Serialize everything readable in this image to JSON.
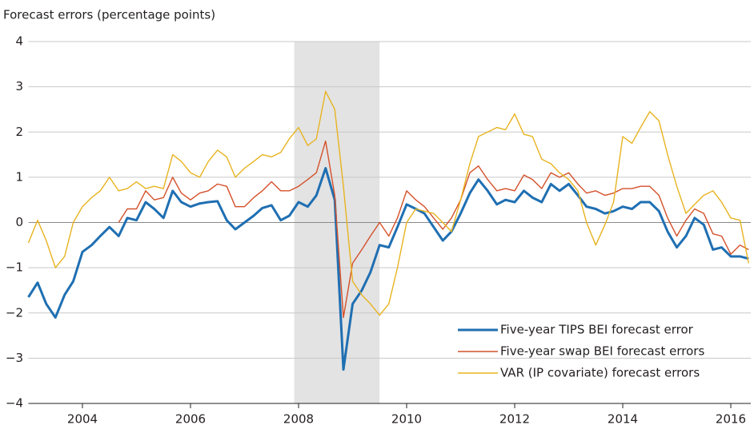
{
  "chart_data": {
    "type": "line",
    "y_axis_label": "Forecast errors (percentage points)",
    "x": [
      2003.0,
      2003.17,
      2003.33,
      2003.5,
      2003.67,
      2003.83,
      2004.0,
      2004.17,
      2004.33,
      2004.5,
      2004.67,
      2004.83,
      2005.0,
      2005.17,
      2005.33,
      2005.5,
      2005.67,
      2005.83,
      2006.0,
      2006.17,
      2006.33,
      2006.5,
      2006.67,
      2006.83,
      2007.0,
      2007.17,
      2007.33,
      2007.5,
      2007.67,
      2007.83,
      2008.0,
      2008.17,
      2008.33,
      2008.5,
      2008.67,
      2008.83,
      2009.0,
      2009.17,
      2009.33,
      2009.5,
      2009.67,
      2009.83,
      2010.0,
      2010.17,
      2010.33,
      2010.5,
      2010.67,
      2010.83,
      2011.0,
      2011.17,
      2011.33,
      2011.5,
      2011.67,
      2011.83,
      2012.0,
      2012.17,
      2012.33,
      2012.5,
      2012.67,
      2012.83,
      2013.0,
      2013.17,
      2013.33,
      2013.5,
      2013.67,
      2013.83,
      2014.0,
      2014.17,
      2014.33,
      2014.5,
      2014.67,
      2014.83,
      2015.0,
      2015.17,
      2015.33,
      2015.5,
      2015.67,
      2015.83,
      2016.0,
      2016.17,
      2016.33
    ],
    "series": [
      {
        "name": "Five-year TIPS BEI forecast error",
        "color": "#1f6fb2",
        "width": 3,
        "values": [
          -1.65,
          -1.33,
          -1.8,
          -2.1,
          -1.6,
          -1.3,
          -0.65,
          -0.5,
          -0.3,
          -0.1,
          -0.3,
          0.1,
          0.05,
          0.45,
          0.3,
          0.1,
          0.7,
          0.45,
          0.35,
          0.42,
          0.45,
          0.47,
          0.05,
          -0.15,
          0.0,
          0.15,
          0.32,
          0.38,
          0.05,
          0.15,
          0.45,
          0.35,
          0.6,
          1.2,
          0.5,
          -3.25,
          -1.8,
          -1.5,
          -1.1,
          -0.5,
          -0.55,
          -0.1,
          0.4,
          0.3,
          0.2,
          -0.1,
          -0.4,
          -0.2,
          0.2,
          0.65,
          0.95,
          0.7,
          0.4,
          0.5,
          0.45,
          0.7,
          0.55,
          0.45,
          0.85,
          0.7,
          0.85,
          0.6,
          0.35,
          0.3,
          0.2,
          0.25,
          0.35,
          0.3,
          0.45,
          0.45,
          0.25,
          -0.2,
          -0.55,
          -0.3,
          0.1,
          -0.05,
          -0.6,
          -0.55,
          -0.75,
          -0.75,
          -0.8
        ]
      },
      {
        "name": "Five-year swap BEI forecast errors",
        "color": "#d4502a",
        "width": 1.4,
        "values": [
          null,
          null,
          null,
          null,
          null,
          null,
          null,
          null,
          null,
          null,
          0.0,
          0.3,
          0.3,
          0.7,
          0.5,
          0.55,
          1.0,
          0.65,
          0.5,
          0.65,
          0.7,
          0.85,
          0.8,
          0.35,
          0.35,
          0.55,
          0.7,
          0.9,
          0.7,
          0.7,
          0.8,
          0.95,
          1.1,
          1.8,
          0.6,
          -2.1,
          -0.9,
          -0.6,
          -0.3,
          0.0,
          -0.3,
          0.1,
          0.7,
          0.5,
          0.35,
          0.1,
          -0.15,
          0.1,
          0.5,
          1.1,
          1.25,
          0.95,
          0.7,
          0.75,
          0.7,
          1.05,
          0.95,
          0.75,
          1.1,
          1.0,
          1.1,
          0.85,
          0.65,
          0.7,
          0.6,
          0.65,
          0.75,
          0.75,
          0.8,
          0.8,
          0.6,
          0.1,
          -0.3,
          0.05,
          0.3,
          0.2,
          -0.25,
          -0.3,
          -0.7,
          -0.5,
          -0.6
        ]
      },
      {
        "name": "VAR (IP covariate) forecast errors",
        "color": "#e8b320",
        "width": 1.4,
        "values": [
          -0.45,
          0.05,
          -0.4,
          -1.0,
          -0.75,
          0.0,
          0.35,
          0.55,
          0.7,
          1.0,
          0.7,
          0.75,
          0.9,
          0.75,
          0.8,
          0.75,
          1.5,
          1.35,
          1.1,
          1.0,
          1.35,
          1.6,
          1.45,
          1.0,
          1.2,
          1.35,
          1.5,
          1.45,
          1.55,
          1.85,
          2.1,
          1.7,
          1.85,
          2.9,
          2.5,
          0.8,
          -1.3,
          -1.6,
          -1.8,
          -2.05,
          -1.8,
          -1.0,
          0.0,
          0.3,
          0.25,
          0.2,
          0.0,
          -0.2,
          0.5,
          1.3,
          1.9,
          2.0,
          2.1,
          2.05,
          2.4,
          1.95,
          1.9,
          1.4,
          1.3,
          1.1,
          0.95,
          0.7,
          0.0,
          -0.5,
          -0.05,
          0.45,
          1.9,
          1.75,
          2.1,
          2.45,
          2.25,
          1.5,
          0.8,
          0.2,
          0.4,
          0.6,
          0.7,
          0.45,
          0.1,
          0.05,
          -0.9
        ]
      }
    ],
    "shade": [
      2007.92,
      2009.5
    ],
    "xlim": [
      2003.0,
      2016.37
    ],
    "xticks": [
      2004,
      2006,
      2008,
      2010,
      2012,
      2014,
      2016
    ],
    "ylim": [
      -4,
      4
    ],
    "yticks": [
      {
        "value": -4,
        "label": "−4"
      },
      {
        "value": -3,
        "label": "−3"
      },
      {
        "value": -2,
        "label": "−2"
      },
      {
        "value": -1,
        "label": "−1"
      },
      0,
      1,
      2,
      3,
      4
    ],
    "grid": true,
    "legend": "lower-right"
  }
}
